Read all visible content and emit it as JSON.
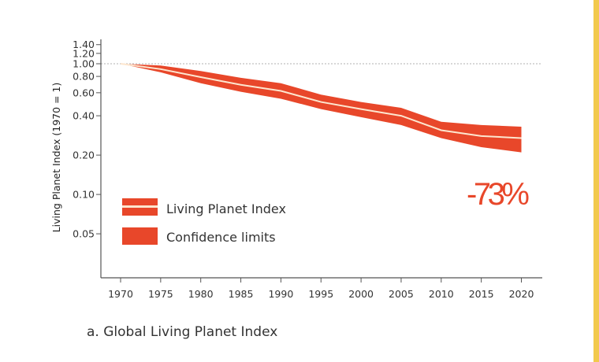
{
  "chart_data": {
    "type": "area",
    "caption": "a. Global Living Planet Index",
    "ylabel": "Living Planet Index (1970 = 1)",
    "xlabel": "",
    "y_scale": "log",
    "ylim": [
      0.035,
      1.5
    ],
    "xlim": [
      1967,
      2025
    ],
    "yticks": [
      "0.05",
      "0.10",
      "0.20",
      "0.40",
      "0.60",
      "0.80",
      "1.00",
      "1.20",
      "1.40"
    ],
    "xticks": [
      "1970",
      "1975",
      "1980",
      "1985",
      "1990",
      "1995",
      "2000",
      "2005",
      "2010",
      "2015",
      "2020"
    ],
    "reference_line": 1.0,
    "annotation": "-73%",
    "legend": {
      "placement": "lower-left",
      "entries": [
        "Living Planet Index",
        "Confidence limits"
      ]
    },
    "x": [
      1970,
      1975,
      1980,
      1985,
      1990,
      1995,
      2000,
      2005,
      2010,
      2015,
      2020
    ],
    "series": [
      {
        "name": "Living Planet Index",
        "values": [
          1.0,
          0.91,
          0.79,
          0.69,
          0.62,
          0.51,
          0.45,
          0.4,
          0.31,
          0.28,
          0.27
        ]
      },
      {
        "name": "Confidence limits",
        "lower": [
          1.0,
          0.86,
          0.71,
          0.61,
          0.54,
          0.45,
          0.39,
          0.34,
          0.27,
          0.23,
          0.21
        ],
        "upper": [
          1.0,
          0.97,
          0.88,
          0.78,
          0.71,
          0.58,
          0.51,
          0.46,
          0.36,
          0.34,
          0.33
        ]
      }
    ],
    "colors": {
      "band": "#e8472a",
      "line": "#fde6cf",
      "accent_bar": "#f2c94c"
    }
  }
}
